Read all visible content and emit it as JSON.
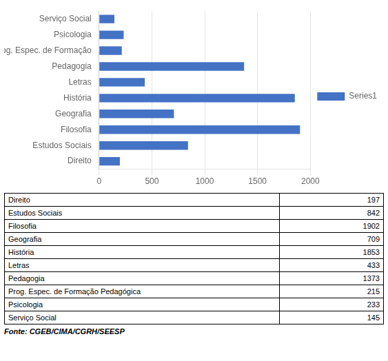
{
  "chart_data": {
    "type": "bar",
    "orientation": "horizontal",
    "categories": [
      "Direito",
      "Estudos Sociais",
      "Filosofia",
      "Geografia",
      "História",
      "Letras",
      "Pedagogia",
      "Prog. Espec. de Formação",
      "Psicologia",
      "Serviço Social"
    ],
    "series": [
      {
        "name": "Series1",
        "color": "#4472C4",
        "values": [
          197,
          842,
          1902,
          709,
          1853,
          433,
          1373,
          215,
          233,
          145
        ]
      }
    ],
    "xlim": [
      0,
      2000
    ],
    "xticks": [
      0,
      500,
      1000,
      1500,
      2000
    ],
    "grid": true,
    "legend": "right",
    "table": [
      [
        "Direito",
        "197"
      ],
      [
        "Estudos Sociais",
        "842"
      ],
      [
        "Filosofia",
        "1902"
      ],
      [
        "Geografia",
        "709"
      ],
      [
        "História",
        "1853"
      ],
      [
        "Letras",
        "433"
      ],
      [
        "Pedagogia",
        "1373"
      ],
      [
        "Prog. Espec. de Formação Pedagógica",
        "215"
      ],
      [
        "Psicologia",
        "233"
      ],
      [
        "Serviço Social",
        "145"
      ]
    ],
    "annotations": [
      "Fonte: CGEB/CIMA/CGRH/SEESP"
    ]
  }
}
